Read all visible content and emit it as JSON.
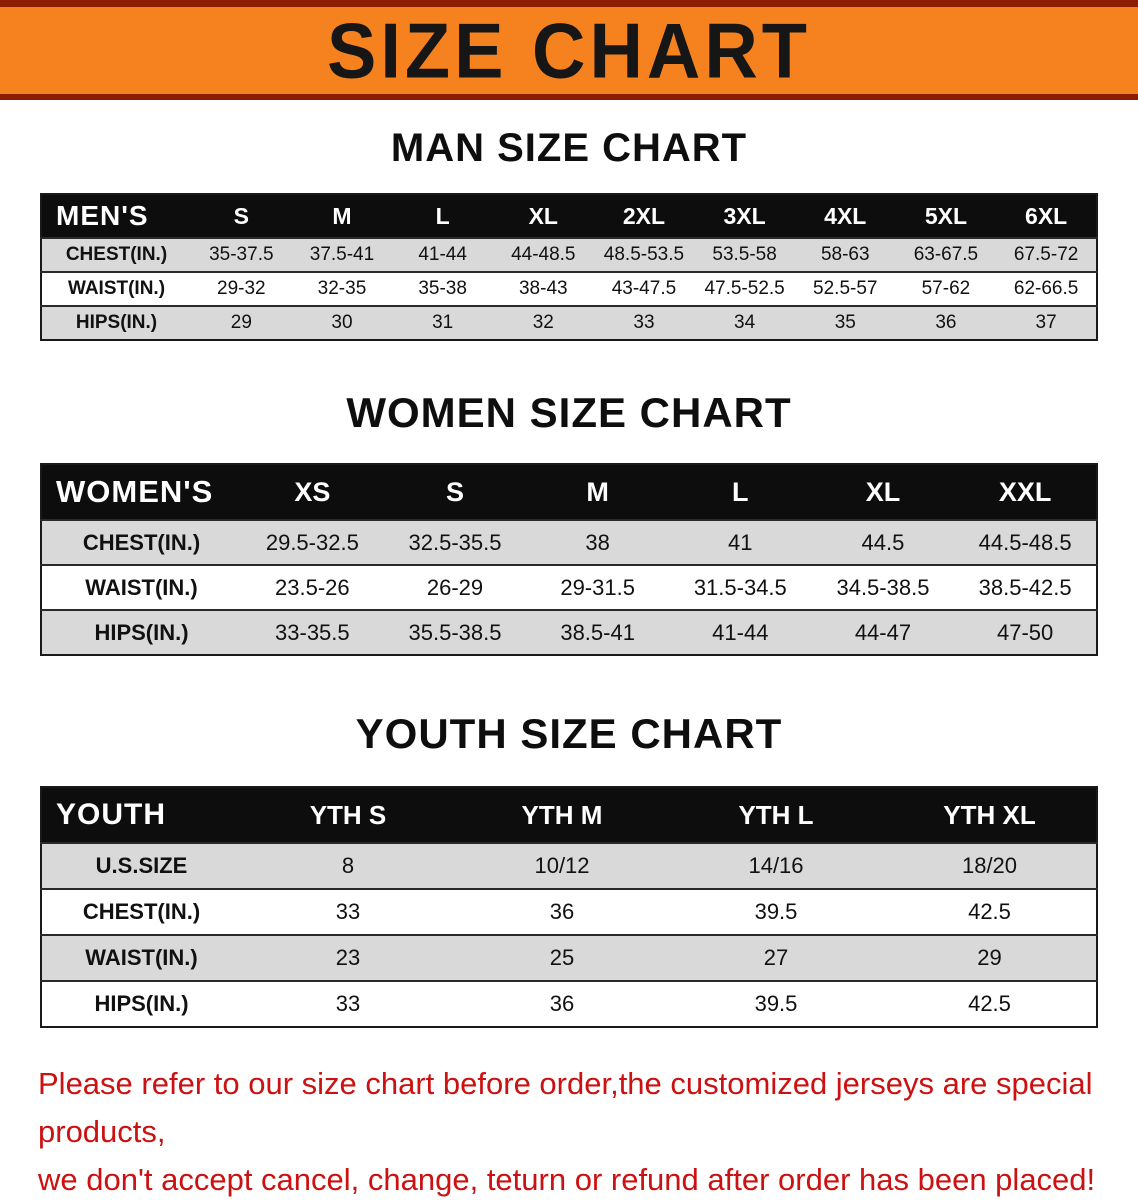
{
  "banner": {
    "title": "SIZE CHART"
  },
  "colors": {
    "banner_bg": "#f5821f",
    "banner_border": "#8c1d03",
    "table_header_bg": "#0d0d0d",
    "row_gray": "#d9d9d9",
    "footer_text": "#cb1111"
  },
  "sections": {
    "men": {
      "title": "MAN SIZE CHART",
      "group_label": "MEN'S",
      "columns": [
        "S",
        "M",
        "L",
        "XL",
        "2XL",
        "3XL",
        "4XL",
        "5XL",
        "6XL"
      ],
      "rows": [
        {
          "label": "CHEST(IN.)",
          "values": [
            "35-37.5",
            "37.5-41",
            "41-44",
            "44-48.5",
            "48.5-53.5",
            "53.5-58",
            "58-63",
            "63-67.5",
            "67.5-72"
          ]
        },
        {
          "label": "WAIST(IN.)",
          "values": [
            "29-32",
            "32-35",
            "35-38",
            "38-43",
            "43-47.5",
            "47.5-52.5",
            "52.5-57",
            "57-62",
            "62-66.5"
          ]
        },
        {
          "label": "HIPS(IN.)",
          "values": [
            "29",
            "30",
            "31",
            "32",
            "33",
            "34",
            "35",
            "36",
            "37"
          ]
        }
      ]
    },
    "women": {
      "title": "WOMEN SIZE CHART",
      "group_label": "WOMEN'S",
      "columns": [
        "XS",
        "S",
        "M",
        "L",
        "XL",
        "XXL"
      ],
      "rows": [
        {
          "label": "CHEST(IN.)",
          "values": [
            "29.5-32.5",
            "32.5-35.5",
            "38",
            "41",
            "44.5",
            "44.5-48.5"
          ]
        },
        {
          "label": "WAIST(IN.)",
          "values": [
            "23.5-26",
            "26-29",
            "29-31.5",
            "31.5-34.5",
            "34.5-38.5",
            "38.5-42.5"
          ]
        },
        {
          "label": "HIPS(IN.)",
          "values": [
            "33-35.5",
            "35.5-38.5",
            "38.5-41",
            "41-44",
            "44-47",
            "47-50"
          ]
        }
      ]
    },
    "youth": {
      "title": "YOUTH SIZE CHART",
      "group_label": "YOUTH",
      "columns": [
        "YTH S",
        "YTH M",
        "YTH L",
        "YTH XL"
      ],
      "rows": [
        {
          "label": "U.S.SIZE",
          "values": [
            "8",
            "10/12",
            "14/16",
            "18/20"
          ]
        },
        {
          "label": "CHEST(IN.)",
          "values": [
            "33",
            "36",
            "39.5",
            "42.5"
          ]
        },
        {
          "label": "WAIST(IN.)",
          "values": [
            "23",
            "25",
            "27",
            "29"
          ]
        },
        {
          "label": "HIPS(IN.)",
          "values": [
            "33",
            "36",
            "39.5",
            "42.5"
          ]
        }
      ]
    }
  },
  "footer": {
    "line1": "Please refer to our size chart before order,the customized jerseys are special products,",
    "line2": "we don't accept cancel, change, teturn or refund after order has been placed!"
  }
}
